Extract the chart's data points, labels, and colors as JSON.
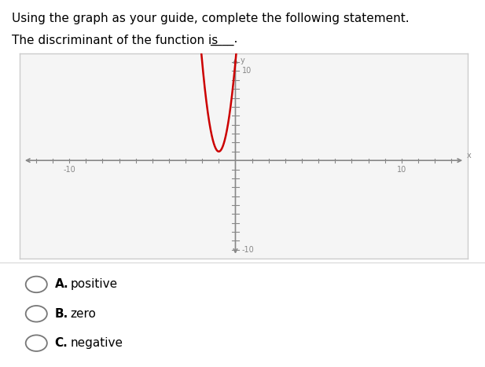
{
  "title_line1": "Using the graph as your guide, complete the following statement.",
  "title_line2_part1": "The discriminant of the function is ",
  "title_line2_part2": "____.",
  "xlim": [
    -13,
    14
  ],
  "ylim": [
    -11,
    12
  ],
  "x_tick_label_neg": "-10",
  "x_tick_label_pos": "10",
  "y_tick_label_top": "10",
  "y_tick_label_bot": "-10",
  "curve_color": "#cc0000",
  "axis_color": "#888888",
  "box_facecolor": "#f5f5f5",
  "box_edgecolor": "#cccccc",
  "bg_color": "#ffffff",
  "choices_A": "A.",
  "choices_B": "B.",
  "choices_C": "C.",
  "choices_A_text": "positive",
  "choices_B_text": "zero",
  "choices_C_text": "negative",
  "choice_fontsize": 11,
  "axis_label_x": "x",
  "axis_label_y": "y",
  "parabola_vertex_x": -1,
  "parabola_vertex_y": 1,
  "parabola_a": 10.0,
  "text_fontsize": 11
}
